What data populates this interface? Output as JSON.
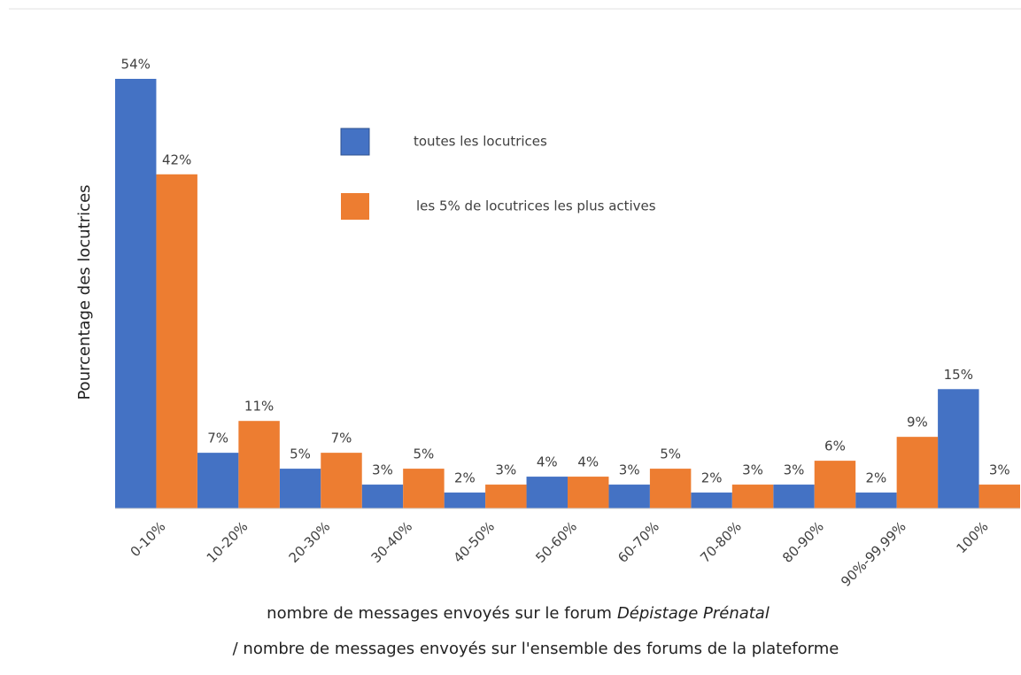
{
  "chart_data": {
    "type": "bar",
    "y_label": "Pourcentage des locutrices",
    "x_label": {
      "text": "nombre de messages envoyés sur le forum",
      "forum": "Dépistage Prénatal",
      "line2": "/ nombre de messages envoyés sur l'ensemble des forums de la plateforme"
    },
    "categories": [
      "0-10%",
      "10-20%",
      "20-30%",
      "30-40%",
      "40-50%",
      "50-60%",
      "60-70%",
      "70-80%",
      "80-90%",
      "90%-99,99%",
      "100%"
    ],
    "series": [
      {
        "name": "toutes les locutrices",
        "color": "#4472c4",
        "values": [
          54,
          7,
          5,
          3,
          2,
          4,
          3,
          2,
          3,
          2,
          15
        ],
        "value_labels": [
          "54%",
          "7%",
          "5%",
          "3%",
          "2%",
          "4%",
          "3%",
          "2%",
          "3%",
          "2%",
          "15%"
        ]
      },
      {
        "name": "les 5% de locutrices les plus actives",
        "color": "#ed7d31",
        "values": [
          42,
          11,
          7,
          5,
          3,
          4,
          5,
          3,
          6,
          9,
          3
        ],
        "value_labels": [
          "42%",
          "11%",
          "7%",
          "5%",
          "3%",
          "4%",
          "5%",
          "3%",
          "6%",
          "9%",
          "3%"
        ]
      }
    ]
  }
}
